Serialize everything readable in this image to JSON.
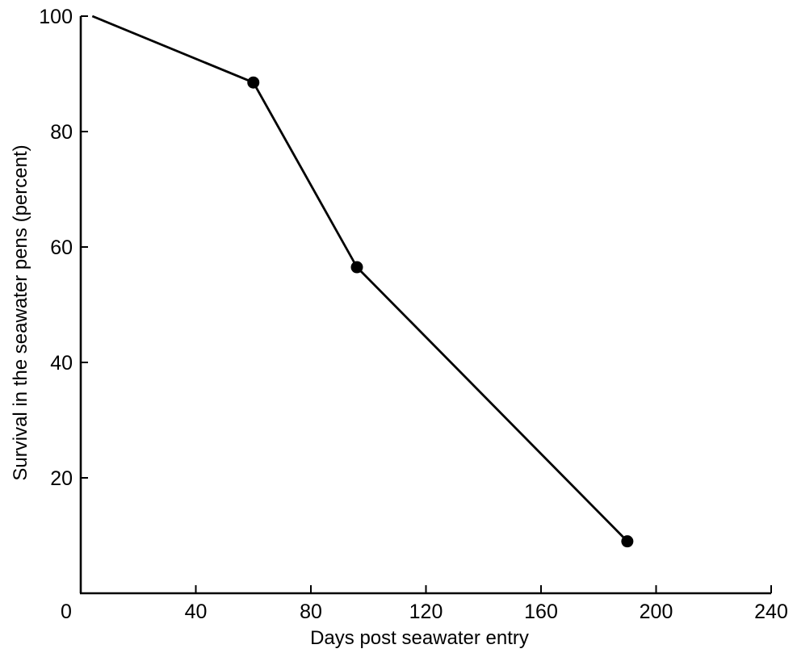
{
  "chart_data": {
    "type": "line",
    "title": "",
    "xlabel": "Days post seawater entry",
    "ylabel": "Survival in the seawater pens (percent)",
    "xlim": [
      0,
      240
    ],
    "ylim": [
      0,
      100
    ],
    "x_ticks": [
      0,
      40,
      80,
      120,
      160,
      200,
      240
    ],
    "y_ticks": [
      20,
      40,
      60,
      80,
      100
    ],
    "grid": false,
    "legend": "none",
    "series": [
      {
        "x": [
          4,
          60,
          96,
          190
        ],
        "y": [
          100,
          88.5,
          56.5,
          9
        ],
        "marker": [
          false,
          true,
          true,
          true
        ],
        "color": "#000000"
      }
    ]
  }
}
